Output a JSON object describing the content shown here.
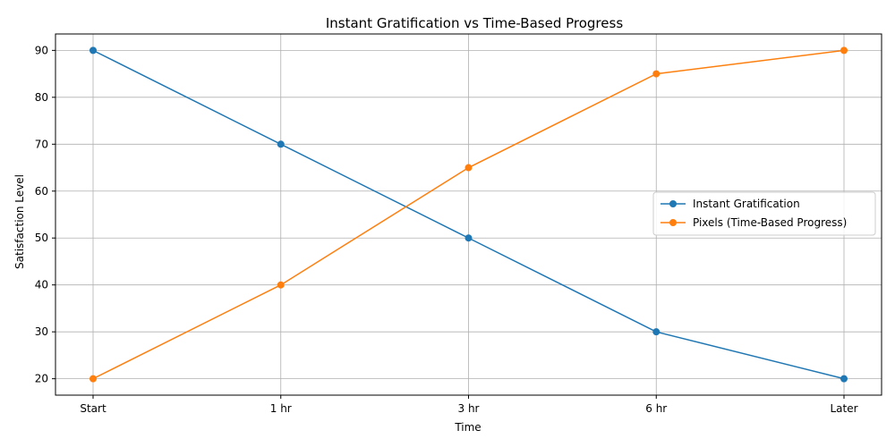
{
  "chart_data": {
    "type": "line",
    "title": "Instant Gratification vs Time-Based Progress",
    "xlabel": "Time",
    "ylabel": "Satisfaction Level",
    "categories": [
      "Start",
      "1 hr",
      "3 hr",
      "6 hr",
      "Later"
    ],
    "ylim": [
      16.5,
      93.5
    ],
    "yticks": [
      20,
      30,
      40,
      50,
      60,
      70,
      80,
      90
    ],
    "grid": true,
    "legend_position": "center-right",
    "series": [
      {
        "name": "Instant Gratification",
        "color": "#1f77b4",
        "marker": "circle",
        "values": [
          90,
          70,
          50,
          30,
          20
        ]
      },
      {
        "name": "Pixels (Time-Based Progress)",
        "color": "#ff7f0e",
        "marker": "circle",
        "values": [
          20,
          40,
          65,
          85,
          90
        ]
      }
    ]
  }
}
